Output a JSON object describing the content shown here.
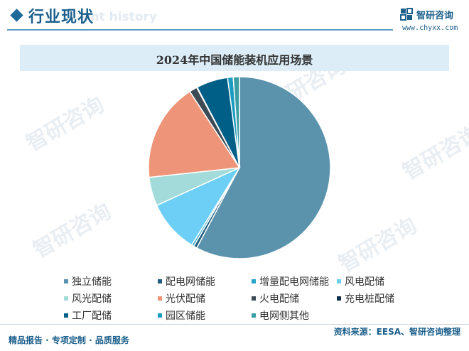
{
  "header": {
    "title": "行业现状",
    "ghost_text": "ent history"
  },
  "logo": {
    "name": "智研咨询",
    "url": "www.chyxx.com"
  },
  "watermark": "智研咨询",
  "chart_data": {
    "type": "pie",
    "title": "2024年中国储能装机应用场景",
    "categories": [
      "独立储能",
      "配电网储能",
      "增量配电网储能",
      "风电配储",
      "风光配储",
      "光伏配储",
      "火电配储",
      "充电桩配储",
      "工厂配储",
      "园区储能",
      "电网侧其他"
    ],
    "values": [
      57.8,
      0.6,
      0.4,
      9.4,
      5.1,
      17.5,
      1.4,
      0.1,
      5.6,
      1.0,
      1.1
    ],
    "unit": "%",
    "colors": [
      "#5b93ad",
      "#1f5d80",
      "#2aa6c9",
      "#6dcff6",
      "#a2dbd9",
      "#ee9579",
      "#3b4a55",
      "#0d2f45",
      "#005f87",
      "#1b9bc0",
      "#3c9ea5"
    ],
    "legend_position": "bottom"
  },
  "footer": {
    "left": "精品报告 · 专项定制 · 品质服务",
    "right": "资料来源：EESA、智研咨询整理"
  }
}
